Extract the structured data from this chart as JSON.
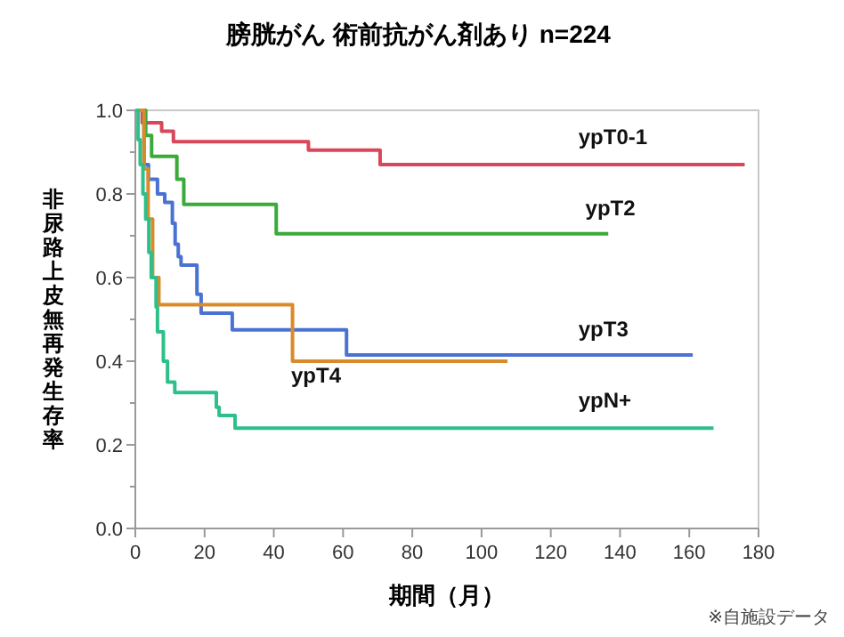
{
  "chart_data": {
    "type": "step",
    "title": "膀胱がん 術前抗がん剤あり n=224",
    "xlabel": "期間（月）",
    "ylabel": "非尿路上皮無再発生存率",
    "annotations": [
      "※自施設データ"
    ],
    "xlim": [
      0,
      180
    ],
    "xticks": [
      0,
      20,
      40,
      60,
      80,
      100,
      120,
      140,
      160,
      180
    ],
    "ylim": [
      0,
      1
    ],
    "yticks": [
      {
        "value": 0,
        "label": "0.0"
      },
      {
        "value": 0.1,
        "label": null
      },
      {
        "value": 0.2,
        "label": "0.2"
      },
      {
        "value": 0.3,
        "label": null
      },
      {
        "value": 0.4,
        "label": "0.4"
      },
      {
        "value": 0.5,
        "label": null
      },
      {
        "value": 0.6,
        "label": "0.6"
      },
      {
        "value": 0.7,
        "label": null
      },
      {
        "value": 0.8,
        "label": "0.8"
      },
      {
        "value": 0.9,
        "label": null
      },
      {
        "value": 1,
        "label": "1.0"
      }
    ],
    "grid": false,
    "series": [
      {
        "name": "ypT0-1",
        "color": "#d9475a",
        "x": [
          0,
          2,
          7.6,
          11,
          50,
          70.7,
          176
        ],
        "values": [
          1,
          0.97,
          0.95,
          0.925,
          0.905,
          0.87,
          0.87
        ]
      },
      {
        "name": "ypT2",
        "color": "#3aaa3a",
        "x": [
          0,
          3,
          4.7,
          12,
          14,
          40.7,
          136.6
        ],
        "values": [
          1,
          0.94,
          0.89,
          0.835,
          0.775,
          0.705,
          0.705
        ]
      },
      {
        "name": "ypT3",
        "color": "#4a72d4",
        "x": [
          0,
          2.5,
          3.8,
          6.4,
          8.5,
          10.7,
          11.5,
          12.4,
          13.2,
          17.8,
          19,
          28,
          61,
          161
        ],
        "values": [
          1,
          0.87,
          0.835,
          0.8,
          0.78,
          0.73,
          0.68,
          0.65,
          0.63,
          0.56,
          0.515,
          0.475,
          0.415,
          0.415
        ]
      },
      {
        "name": "ypT4",
        "color": "#d98b2a",
        "x": [
          0,
          2.5,
          3.7,
          5,
          6.8,
          45.4,
          107.5
        ],
        "values": [
          1,
          0.86,
          0.74,
          0.6,
          0.535,
          0.4,
          0.4
        ]
      },
      {
        "name": "ypN+",
        "color": "#2fbf8a",
        "x": [
          0,
          0.8,
          1.4,
          2.2,
          3,
          3.9,
          4.6,
          6,
          6.4,
          8.1,
          9.3,
          11.4,
          23.4,
          24.2,
          28.8,
          167
        ],
        "values": [
          1,
          0.93,
          0.87,
          0.8,
          0.74,
          0.66,
          0.6,
          0.53,
          0.47,
          0.4,
          0.35,
          0.325,
          0.29,
          0.27,
          0.24,
          0.24
        ]
      }
    ]
  }
}
